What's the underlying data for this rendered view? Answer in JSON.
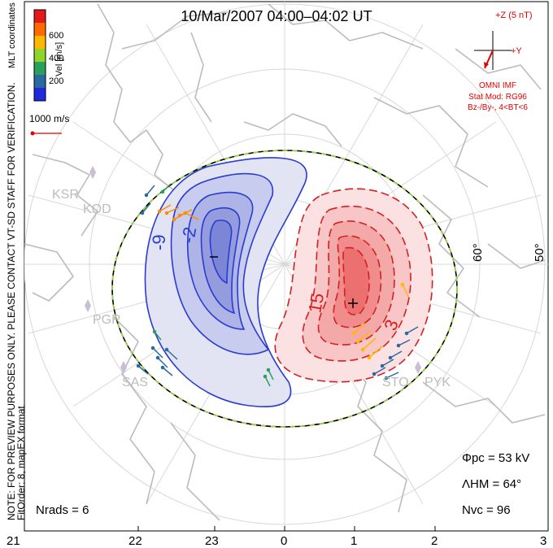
{
  "title": "10/Mar/2007  04:00–04:02 UT",
  "side_note": "NOTE: FOR PREVIEW PURPOSES ONLY. PLEASE CONTACT VT-SD STAFF FOR VERIFICATION.",
  "fit_note": "FitOrder: 8,  mapEX format",
  "coord_label": "MLT coordinates",
  "legend": {
    "label": "Vel [m/s]",
    "ticks": [
      "600",
      "400",
      "200"
    ],
    "colors": [
      "#e41a1a",
      "#ff6a00",
      "#ffb800",
      "#8fd42a",
      "#2aa05a",
      "#2a6aa0",
      "#1f2adf"
    ]
  },
  "vector_scale": "1000 m/s",
  "imf": {
    "label_z": "+Z (5 nT)",
    "label_y": "+Y",
    "source": "OMNI IMF",
    "stat_mod": "Stat Mod: RG96",
    "condition": "Bz-/By-, 4<BT<6"
  },
  "stats": {
    "phi_pc": "Φpc = 53 kV",
    "lambda_hm": "ΛHM = 64°",
    "n_vc": "Nvc = 96",
    "n_rads": "Nrads = 6"
  },
  "mlt_ticks": [
    "21",
    "22",
    "23",
    "0",
    "1",
    "2",
    "3"
  ],
  "lat_labels": [
    "60°",
    "50°"
  ],
  "stations": [
    "KSR",
    "KOD",
    "PGR",
    "SAS",
    "STO",
    "PYK"
  ],
  "contour_labels": [
    "-9",
    "-2",
    "–",
    "15",
    "3",
    "+"
  ],
  "colors": {
    "negative_cell": "#2a3bd0",
    "positive_cell": "#d42020",
    "coast": "#bcbcbc",
    "boundary_dash": "#9ad24a",
    "imf_red": "#e00000"
  }
}
